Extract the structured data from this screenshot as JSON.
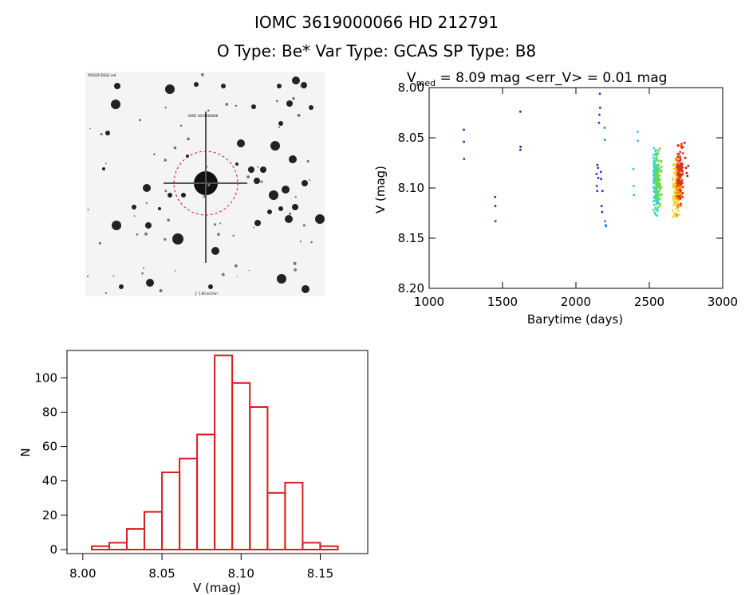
{
  "header": {
    "line1": "IOMC 3619000066    HD 212791",
    "line2": "O Type: Be*  Var Type: GCAS  SP Type: B8"
  },
  "finder": {
    "top_left_label": "POSS2F/DSS2.red",
    "target_label": "IOMC 3619000066",
    "bottom_label": "J: 1.60 arcmin"
  },
  "chart_data": [
    {
      "type": "scatter",
      "title": "V_med = 8.09 mag <err_V> = 0.01 mag",
      "title_parts": {
        "v": "V",
        "sub": "med",
        "rest": " = 8.09 mag <err_V> = 0.01 mag"
      },
      "xlabel": "Barytime (days)",
      "ylabel": "V (mag)",
      "xlim": [
        1000,
        3000
      ],
      "ylim": [
        8.2,
        8.0
      ],
      "y_inverted": true,
      "xticks": [
        1000,
        1500,
        2000,
        2500,
        3000
      ],
      "yticks": [
        "8.00",
        "8.05",
        "8.10",
        "8.15",
        "8.20"
      ],
      "color_scale": "rainbow by time (blue early, red late)",
      "series": [
        {
          "color": "#3a1fa8",
          "points": [
            [
              1237,
              8.042
            ],
            [
              1237,
              8.054
            ],
            [
              1238,
              8.071
            ]
          ]
        },
        {
          "color": "#3a1fa8",
          "points": [
            [
              1450,
              8.109
            ],
            [
              1451,
              8.118
            ],
            [
              1452,
              8.133
            ]
          ]
        },
        {
          "color": "#3a1fa8",
          "points": [
            [
              1622,
              8.024
            ],
            [
              1622,
              8.062
            ],
            [
              1623,
              8.059
            ]
          ]
        },
        {
          "color": "#2432c8",
          "points": [
            [
              2140,
              8.086
            ],
            [
              2142,
              8.098
            ],
            [
              2145,
              8.103
            ],
            [
              2146,
              8.077
            ],
            [
              2150,
              8.08
            ],
            [
              2152,
              8.09
            ],
            [
              2157,
              8.035
            ],
            [
              2160,
              8.027
            ],
            [
              2163,
              8.006
            ],
            [
              2165,
              8.02
            ],
            [
              2170,
              8.084
            ],
            [
              2172,
              8.091
            ],
            [
              2175,
              8.118
            ],
            [
              2178,
              8.124
            ],
            [
              2181,
              8.103
            ]
          ]
        },
        {
          "color": "#1e78d8",
          "points": [
            [
              2195,
              8.04
            ],
            [
              2197,
              8.052
            ],
            [
              2199,
              8.133
            ],
            [
              2203,
              8.137
            ],
            [
              2205,
              8.138
            ]
          ]
        },
        {
          "color": "#2ec0e0",
          "points": [
            [
              2392,
              8.081
            ],
            [
              2393,
              8.098
            ],
            [
              2395,
              8.107
            ],
            [
              2420,
              8.044
            ],
            [
              2422,
              8.053
            ]
          ]
        },
        {
          "color": "#38d8c0",
          "dense": true,
          "x_range": [
            2528,
            2562
          ],
          "y_center": 8.095,
          "y_spread": 0.025,
          "count": 170
        },
        {
          "color": "#7ad830",
          "dense": true,
          "x_range": [
            2545,
            2585
          ],
          "y_center": 8.09,
          "y_spread": 0.022,
          "count": 60
        },
        {
          "color": "#f0d820",
          "dense": true,
          "x_range": [
            2660,
            2705
          ],
          "y_center": 8.1,
          "y_spread": 0.022,
          "count": 90
        },
        {
          "color": "#f08a10",
          "dense": true,
          "x_range": [
            2680,
            2720
          ],
          "y_center": 8.095,
          "y_spread": 0.024,
          "count": 90
        },
        {
          "color": "#e03010",
          "dense": true,
          "x_range": [
            2690,
            2730
          ],
          "y_center": 8.085,
          "y_spread": 0.025,
          "count": 90
        },
        {
          "color": "#c01010",
          "points": [
            [
              2740,
              8.055
            ],
            [
              2745,
              8.07
            ],
            [
              2750,
              8.08
            ],
            [
              2755,
              8.085
            ],
            [
              2760,
              8.088
            ],
            [
              2765,
              8.078
            ]
          ]
        }
      ]
    },
    {
      "type": "bar",
      "subtype": "histogram",
      "xlabel": "V (mag)",
      "ylabel": "N",
      "xlim": [
        7.99,
        8.18
      ],
      "ylim": [
        0,
        115
      ],
      "xticks": [
        "8.00",
        "8.05",
        "8.10",
        "8.15"
      ],
      "yticks": [
        "0",
        "20",
        "40",
        "60",
        "80",
        "100"
      ],
      "bin_width": 0.01111,
      "bin_starts": [
        8.0056,
        8.0167,
        8.0278,
        8.0389,
        8.05,
        8.0611,
        8.0722,
        8.0833,
        8.0944,
        8.1056,
        8.1167,
        8.1278,
        8.1389,
        8.15
      ],
      "values": [
        2,
        4,
        12,
        22,
        45,
        53,
        67,
        113,
        97,
        83,
        33,
        39,
        4,
        2
      ],
      "bar_color": "#d81e1e"
    }
  ]
}
